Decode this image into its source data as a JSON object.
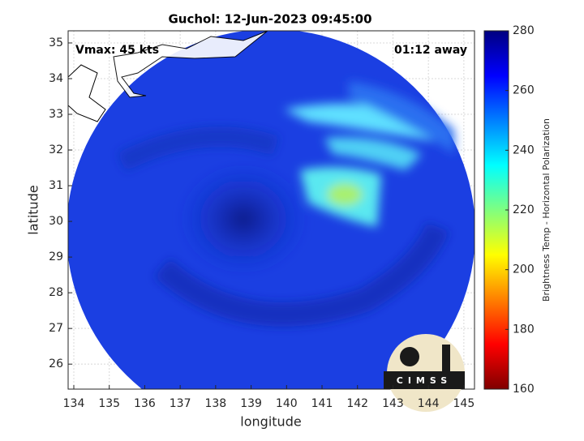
{
  "map": {
    "title": "Guchol: 12-Jun-2023 09:45:00",
    "annotations": [
      "Vmax: 45 kts",
      "01:12 away"
    ],
    "xlabel": "longitude",
    "ylabel": "latitude",
    "xlim": [
      133.84,
      145.3
    ],
    "ylim": [
      25.3,
      35.34
    ],
    "xticks": [
      134,
      135,
      136,
      137,
      138,
      139,
      140,
      141,
      142,
      143,
      144,
      145
    ],
    "yticks": [
      26,
      27,
      28,
      29,
      30,
      31,
      32,
      33,
      34,
      35
    ],
    "grid": true,
    "colorbar": {
      "label": "Brightness Temp - Horizontal Polarization",
      "lim": [
        160,
        280
      ],
      "ticks": [
        160,
        180,
        200,
        220,
        240,
        260,
        280
      ],
      "colormap": "jet"
    },
    "logo": "CIMSS"
  }
}
